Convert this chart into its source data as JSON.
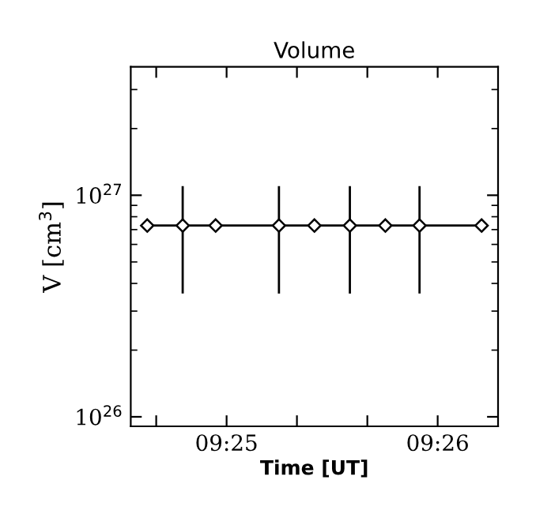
{
  "chart_data": {
    "type": "line",
    "title": "Volume",
    "xlabel": "Time [UT]",
    "ylabel": "V [cm$^{3}$]",
    "x": [
      9.4104,
      9.4132,
      9.4158,
      9.4208,
      9.4236,
      9.4264,
      9.4292,
      9.4319,
      9.4368
    ],
    "series": [
      {
        "color": "#000000",
        "values": [
          7.3e+26,
          7.3e+26,
          7.3e+26,
          7.3e+26,
          7.3e+26,
          7.3e+26,
          7.3e+26,
          7.3e+26,
          7.3e+26
        ],
        "errors": [
          null,
          3.7e+26,
          null,
          3.7e+26,
          null,
          3.7e+26,
          null,
          3.7e+26,
          null
        ]
      }
    ],
    "log": "y",
    "marker": "diamond",
    "line_style": "solid",
    "grid": false,
    "legend": false,
    "xlim": [
      9.4091,
      9.4381
    ],
    "xticks": [
      {
        "value": 9.41111,
        "label": null
      },
      {
        "value": 9.416667,
        "label": "09:25"
      },
      {
        "value": 9.42222,
        "label": null
      },
      {
        "value": 9.42778,
        "label": null
      },
      {
        "value": 9.433333,
        "label": "09:26"
      }
    ],
    "ylim": [
      9.06e+25,
      3.8e+27
    ],
    "yticks": [
      {
        "value": 1e+26,
        "label": "10$^{26}$"
      },
      {
        "value": 1e+27,
        "label": "10$^{27}$"
      }
    ]
  }
}
